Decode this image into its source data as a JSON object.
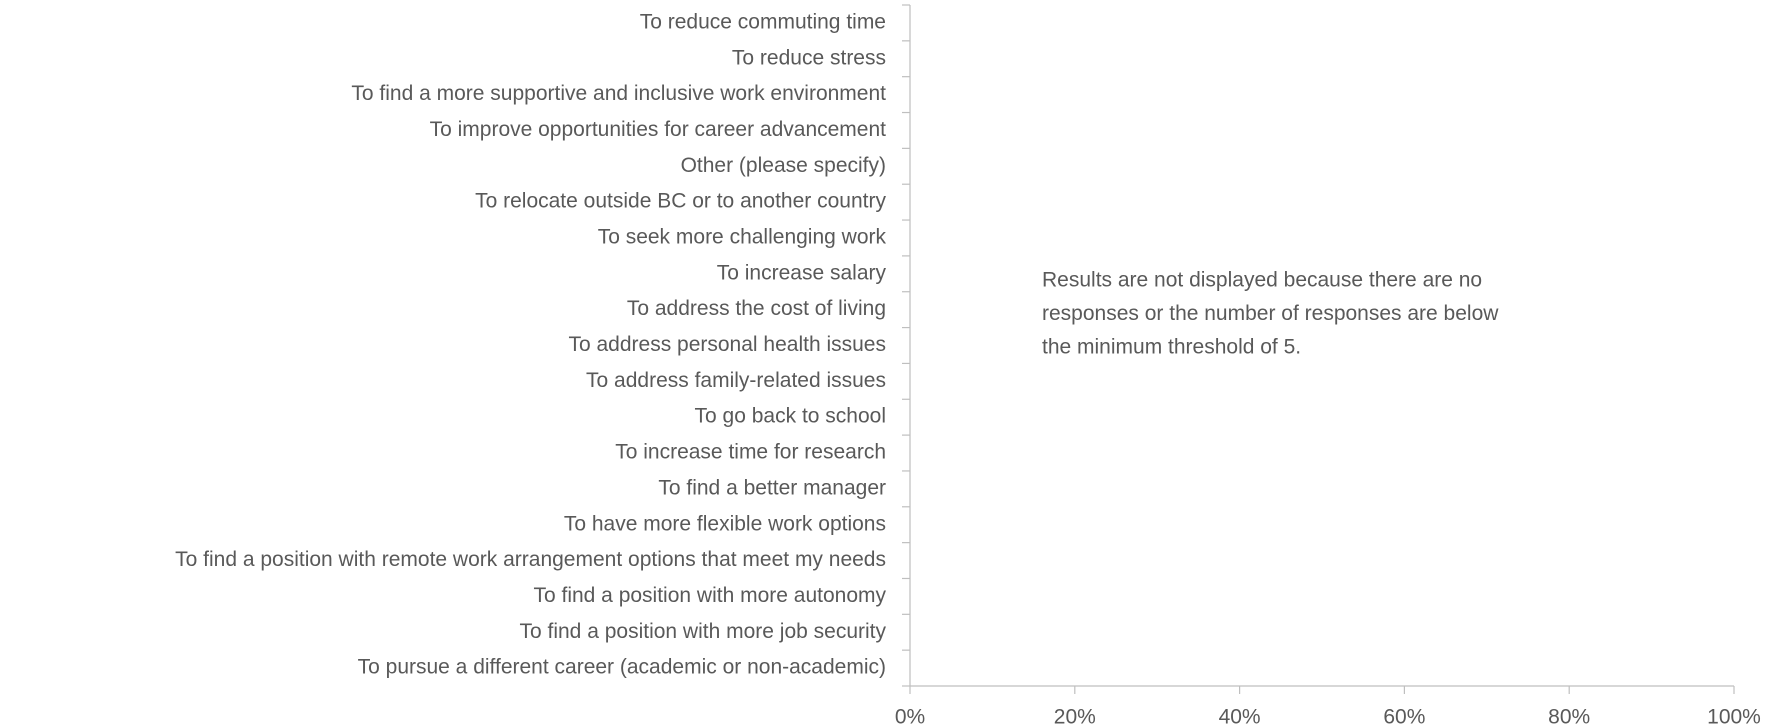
{
  "chart_data": {
    "type": "bar",
    "orientation": "horizontal",
    "categories": [
      "To reduce commuting time",
      "To reduce stress",
      "To find a more supportive and inclusive work environment",
      "To improve opportunities for career advancement",
      "Other (please specify)",
      "To relocate outside BC or to another country",
      "To seek more challenging work",
      "To increase salary",
      "To address the cost of living",
      "To address personal health issues",
      "To address family-related issues",
      "To go back to school",
      "To increase time for research",
      "To find a better manager",
      "To have more flexible work options",
      "To find a position with remote work arrangement options that meet my needs",
      "To find a position with more autonomy",
      "To find a position with more job security",
      "To pursue a different career (academic or non-academic)"
    ],
    "xlim": [
      0,
      100
    ],
    "xticks": [
      {
        "value": 0,
        "label": "0%"
      },
      {
        "value": 20,
        "label": "20%"
      },
      {
        "value": 40,
        "label": "40%"
      },
      {
        "value": 60,
        "label": "60%"
      },
      {
        "value": 80,
        "label": "80%"
      },
      {
        "value": 100,
        "label": "100%"
      }
    ],
    "annotation": [
      "Results are not displayed because there are no",
      "responses or the number of responses are below",
      "the minimum threshold of 5."
    ]
  }
}
